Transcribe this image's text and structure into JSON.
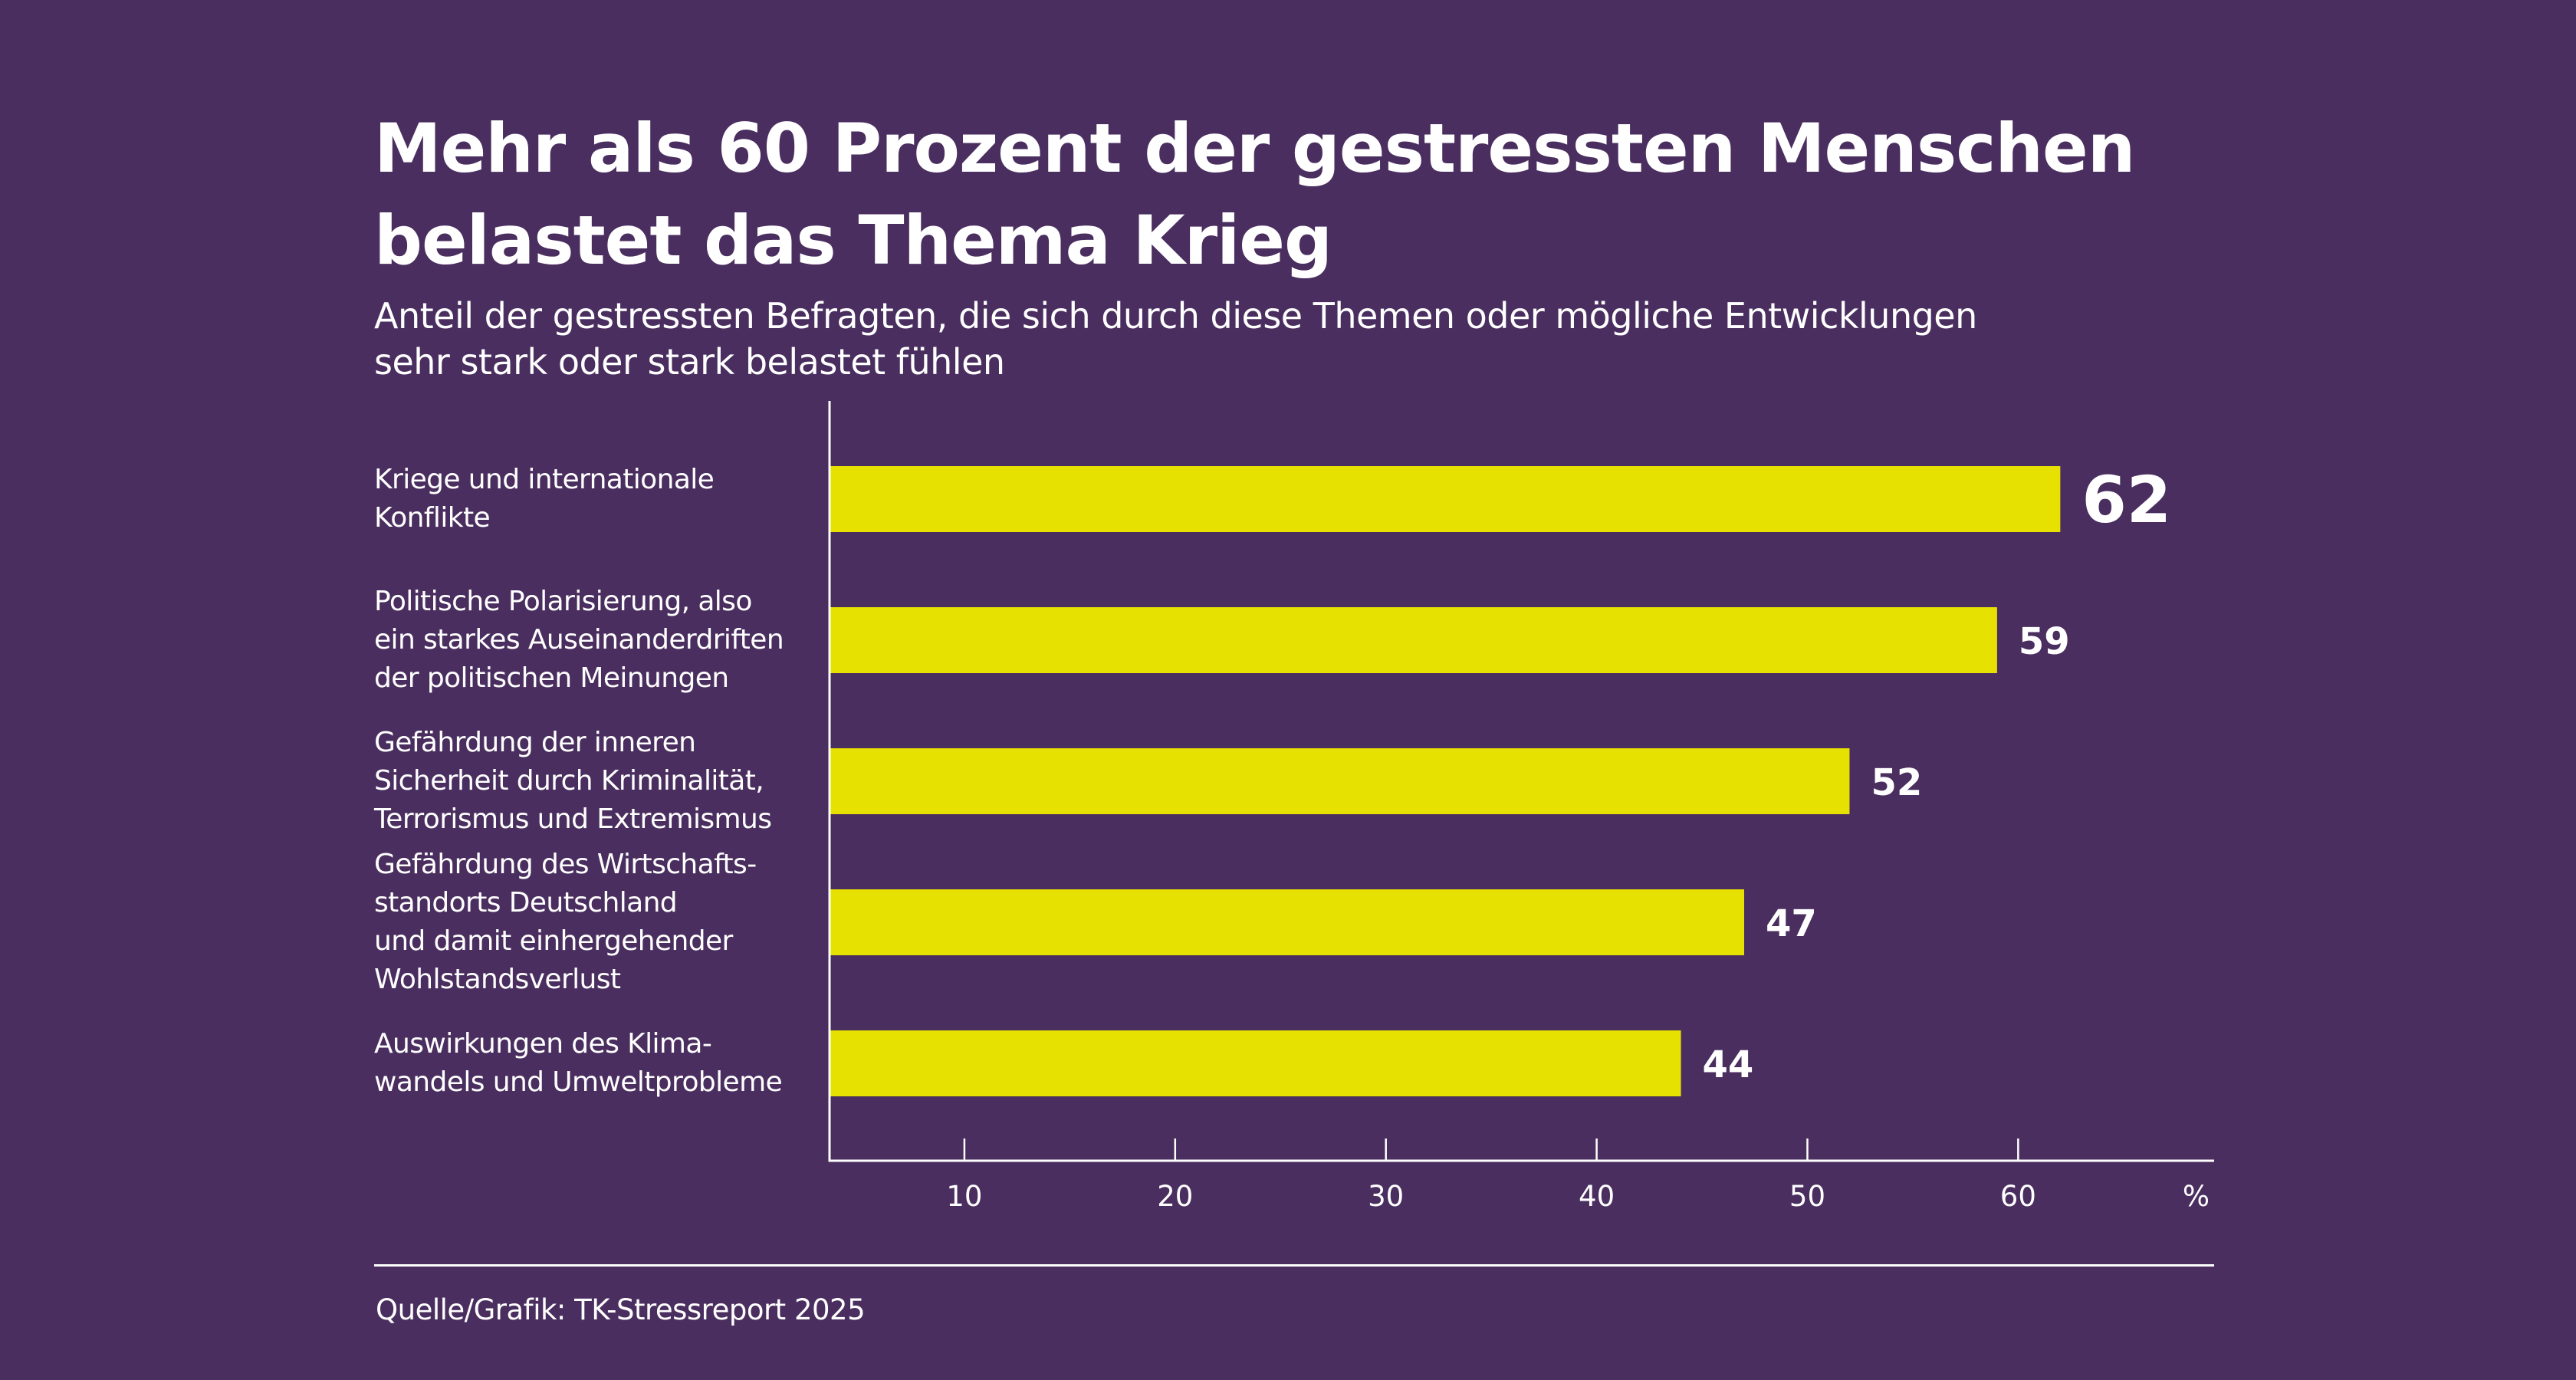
{
  "colors": {
    "background": "#4a2e5f",
    "bar": "#e6e100",
    "text": "#ffffff",
    "axis": "#ffffff"
  },
  "title_lines": [
    "Mehr als 60 Prozent der gestressten Menschen",
    "belastet das Thema Krieg"
  ],
  "subtitle_lines": [
    "Anteil der gestressten Befragten, die sich durch diese Themen oder mögliche Entwicklungen",
    "sehr stark oder stark belastet fühlen"
  ],
  "footer": {
    "source": "Quelle/Grafik: TK-Stressreport 2025"
  },
  "chart_data": {
    "type": "bar",
    "orientation": "horizontal",
    "title": "Mehr als 60 Prozent der gestressten Menschen belastet das Thema Krieg",
    "subtitle": "Anteil der gestressten Befragten, die sich durch diese Themen oder mögliche Entwicklungen sehr stark oder stark belastet fühlen",
    "categories": [
      [
        "Kriege und internationale",
        "Konflikte"
      ],
      [
        "Politische Polarisierung, also",
        "ein starkes Auseinanderdriften",
        "der politischen Meinungen"
      ],
      [
        "Gefährdung der inneren",
        "Sicherheit durch Kriminalität,",
        "Terrorismus und Extremismus"
      ],
      [
        "Gefährdung des Wirtschafts-",
        "standorts Deutschland",
        "und damit einhergehender",
        "Wohlstandsverlust"
      ],
      [
        "Auswirkungen des Klima-",
        "wandels und Umweltprobleme"
      ]
    ],
    "values": [
      62,
      59,
      52,
      47,
      44
    ],
    "value_labels": [
      "62",
      "59",
      "52",
      "47",
      "44"
    ],
    "highlight_index": 0,
    "xlabel": "%",
    "ylabel": "",
    "xticks": [
      10,
      20,
      30,
      40,
      50,
      60
    ],
    "xtick_labels": [
      "10",
      "20",
      "30",
      "40",
      "50",
      "60"
    ],
    "unit_label": "%",
    "xlim": [
      3.6,
      69.3
    ],
    "grid": false,
    "legend": "none",
    "source": "Quelle/Grafik: TK-Stressreport 2025"
  }
}
